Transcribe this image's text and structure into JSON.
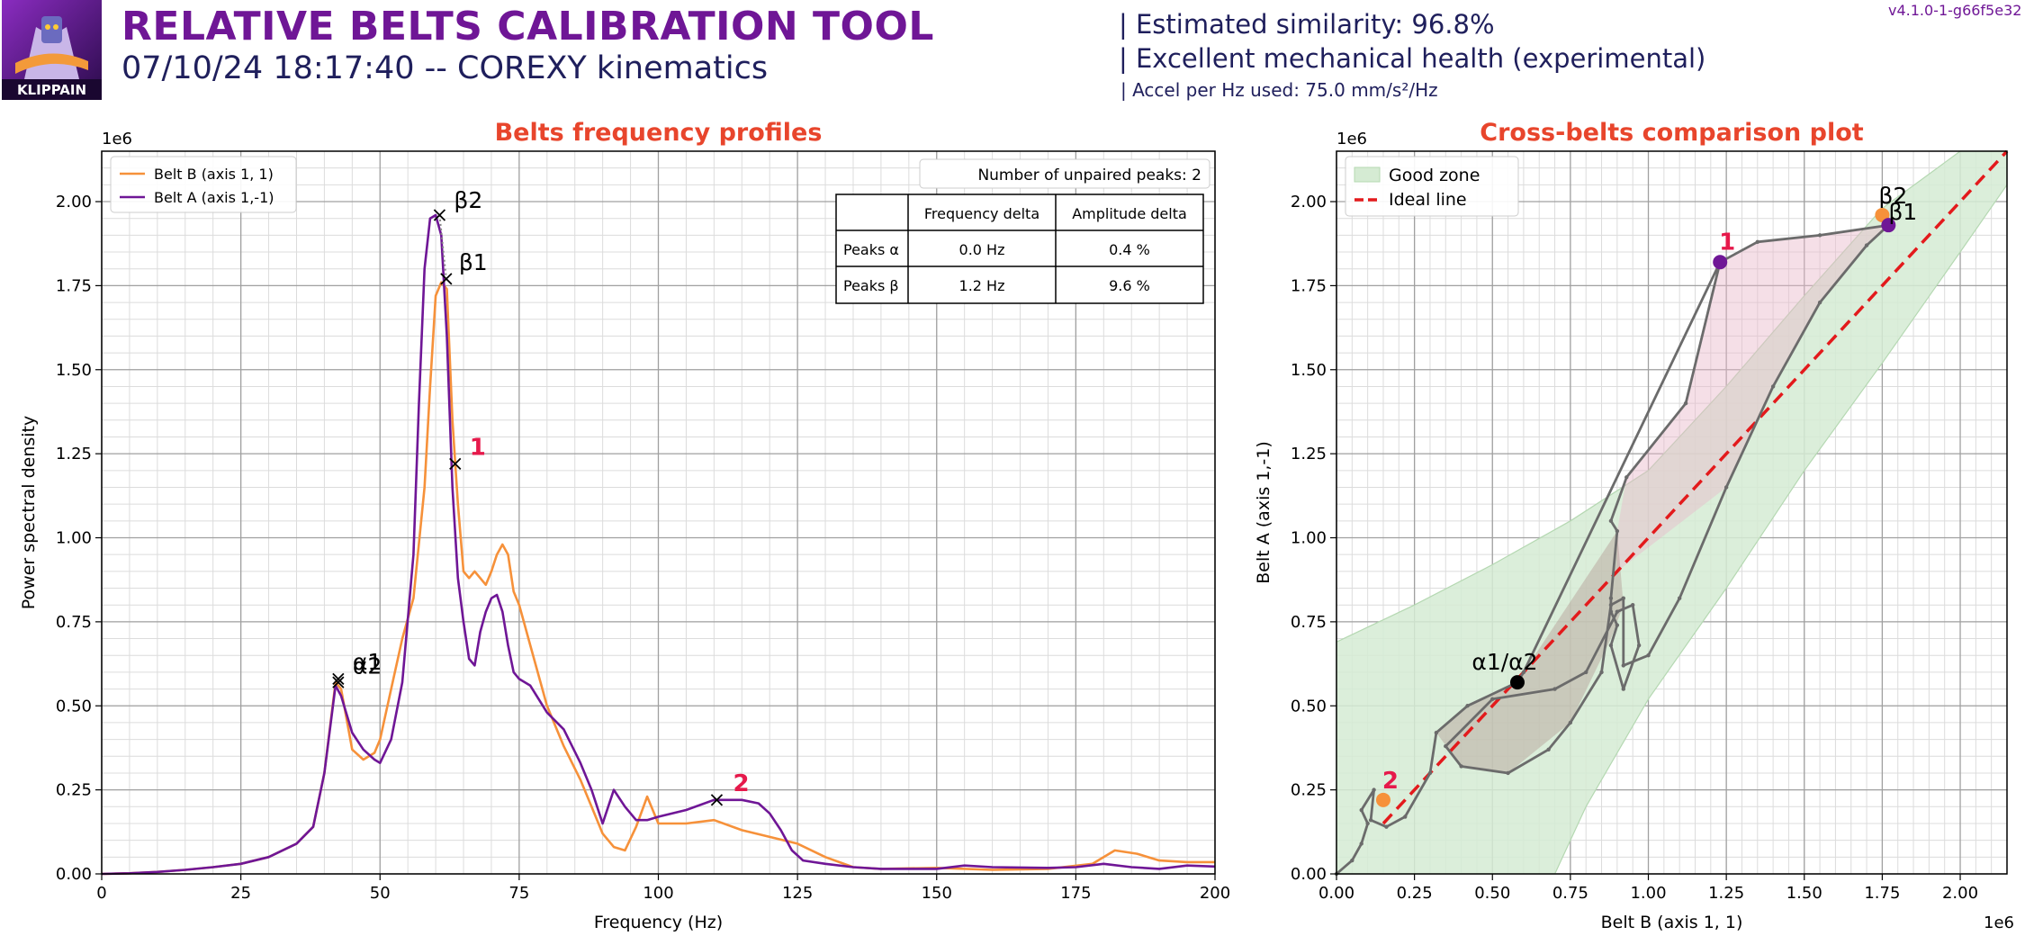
{
  "header": {
    "logo_text": "KLIPPAIN",
    "title": "RELATIVE BELTS CALIBRATION TOOL",
    "subtitle": "07/10/24 18:17:40 -- COREXY kinematics",
    "similarity": "| Estimated similarity: 96.8%",
    "health": "| Excellent mechanical health (experimental)",
    "accel": "| Accel per Hz used: 75.0 mm/s²/Hz",
    "version": "v4.1.0-1-g66f5e32"
  },
  "colors": {
    "belt_b": "#f6913a",
    "belt_a": "#6f1696",
    "title_red": "#e8452c",
    "ideal_line": "#e31a1c",
    "good_zone": "#d5ebd3",
    "path": "#6b6b6b",
    "label_red": "#e6194b"
  },
  "chart_data": [
    {
      "type": "line",
      "title": "Belts frequency profiles",
      "xlabel": "Frequency (Hz)",
      "ylabel": "Power spectral density",
      "y_offset_label": "1e6",
      "xlim": [
        0,
        200
      ],
      "ylim": [
        0,
        2.15
      ],
      "xticks": [
        0,
        25,
        50,
        75,
        100,
        125,
        150,
        175,
        200
      ],
      "yticks": [
        0,
        0.25,
        0.5,
        0.75,
        1.0,
        1.25,
        1.5,
        1.75,
        2.0
      ],
      "xtick_labels": [
        "0",
        "25",
        "50",
        "75",
        "100",
        "125",
        "150",
        "175",
        "200"
      ],
      "ytick_labels": [
        "0.00",
        "0.25",
        "0.50",
        "0.75",
        "1.00",
        "1.25",
        "1.50",
        "1.75",
        "2.00"
      ],
      "grid": true,
      "legend_position": "top-left",
      "series": [
        {
          "name": "Belt B (axis 1, 1)",
          "x": [
            0,
            5,
            10,
            15,
            20,
            25,
            30,
            35,
            38,
            40,
            42,
            43,
            45,
            47,
            49,
            50,
            52,
            54,
            56,
            58,
            59,
            60,
            61,
            62,
            63,
            64,
            65,
            66,
            67,
            68,
            69,
            70,
            71,
            72,
            73,
            74,
            75,
            77,
            80,
            83,
            86,
            88,
            90,
            92,
            94,
            96,
            98,
            100,
            105,
            110,
            115,
            120,
            125,
            130,
            135,
            140,
            150,
            160,
            170,
            178,
            182,
            186,
            190,
            195,
            200
          ],
          "values": [
            0,
            0.002,
            0.006,
            0.012,
            0.02,
            0.03,
            0.05,
            0.09,
            0.14,
            0.3,
            0.57,
            0.55,
            0.37,
            0.34,
            0.36,
            0.4,
            0.55,
            0.7,
            0.82,
            1.15,
            1.45,
            1.72,
            1.76,
            1.74,
            1.35,
            1.1,
            0.9,
            0.88,
            0.9,
            0.88,
            0.86,
            0.9,
            0.95,
            0.98,
            0.95,
            0.84,
            0.8,
            0.68,
            0.5,
            0.38,
            0.28,
            0.2,
            0.12,
            0.08,
            0.07,
            0.14,
            0.23,
            0.15,
            0.15,
            0.16,
            0.13,
            0.11,
            0.09,
            0.05,
            0.02,
            0.015,
            0.018,
            0.012,
            0.015,
            0.03,
            0.07,
            0.06,
            0.04,
            0.035,
            0.035
          ]
        },
        {
          "name": "Belt A (axis 1,-1)",
          "x": [
            0,
            5,
            10,
            15,
            20,
            25,
            30,
            35,
            38,
            40,
            42,
            43,
            45,
            47,
            49,
            50,
            52,
            54,
            56,
            57,
            58,
            59,
            60,
            61,
            62,
            63,
            64,
            65,
            66,
            67,
            68,
            69,
            70,
            71,
            72,
            73,
            74,
            75,
            77,
            80,
            83,
            86,
            88,
            90,
            92,
            94,
            96,
            98,
            100,
            105,
            110,
            115,
            118,
            120,
            122,
            124,
            126,
            130,
            135,
            140,
            150,
            155,
            160,
            170,
            175,
            180,
            185,
            190,
            195,
            200
          ],
          "values": [
            0,
            0.002,
            0.006,
            0.012,
            0.02,
            0.03,
            0.05,
            0.09,
            0.14,
            0.3,
            0.56,
            0.53,
            0.42,
            0.37,
            0.34,
            0.33,
            0.4,
            0.57,
            0.95,
            1.4,
            1.8,
            1.95,
            1.96,
            1.9,
            1.6,
            1.15,
            0.88,
            0.75,
            0.64,
            0.62,
            0.72,
            0.78,
            0.82,
            0.83,
            0.78,
            0.68,
            0.6,
            0.58,
            0.56,
            0.48,
            0.43,
            0.33,
            0.25,
            0.15,
            0.25,
            0.2,
            0.16,
            0.16,
            0.17,
            0.19,
            0.22,
            0.22,
            0.21,
            0.18,
            0.13,
            0.07,
            0.04,
            0.03,
            0.02,
            0.015,
            0.015,
            0.025,
            0.02,
            0.018,
            0.02,
            0.03,
            0.02,
            0.015,
            0.025,
            0.022
          ]
        }
      ],
      "peaks": [
        {
          "label": "α2",
          "x": 42.5,
          "y": 0.58,
          "color": "#000000"
        },
        {
          "label": "α1",
          "x": 42.5,
          "y": 0.57,
          "color": "#000000"
        },
        {
          "label": "β2",
          "x": 60.7,
          "y": 1.96,
          "color": "#000000"
        },
        {
          "label": "β1",
          "x": 61.9,
          "y": 1.77,
          "color": "#000000"
        },
        {
          "label": "1",
          "x": 63.5,
          "y": 1.22,
          "color": "#e6194b"
        },
        {
          "label": "2",
          "x": 110.5,
          "y": 0.22,
          "color": "#e6194b"
        }
      ],
      "unpaired_label": "Number of unpaired peaks: 2",
      "table": {
        "headers": [
          "",
          "Frequency delta",
          "Amplitude delta"
        ],
        "rows": [
          [
            "Peaks α",
            "0.0 Hz",
            "0.4 %"
          ],
          [
            "Peaks β",
            "1.2 Hz",
            "9.6 %"
          ]
        ]
      }
    },
    {
      "type": "scatter",
      "title": "Cross-belts comparison plot",
      "xlabel": "Belt B (axis 1, 1)",
      "ylabel": "Belt A (axis 1,-1)",
      "x_offset_label": "1e6",
      "y_offset_label": "1e6",
      "xlim": [
        0,
        2.15
      ],
      "ylim": [
        0,
        2.15
      ],
      "xticks": [
        0,
        0.25,
        0.5,
        0.75,
        1.0,
        1.25,
        1.5,
        1.75,
        2.0
      ],
      "yticks": [
        0,
        0.25,
        0.5,
        0.75,
        1.0,
        1.25,
        1.5,
        1.75,
        2.0
      ],
      "xtick_labels": [
        "0.00",
        "0.25",
        "0.50",
        "0.75",
        "1.00",
        "1.25",
        "1.50",
        "1.75",
        "2.00"
      ],
      "ytick_labels": [
        "0.00",
        "0.25",
        "0.50",
        "0.75",
        "1.00",
        "1.25",
        "1.50",
        "1.75",
        "2.00"
      ],
      "grid": true,
      "legend_position": "top-left",
      "legend": [
        {
          "label": "Good zone",
          "kind": "zone"
        },
        {
          "label": "Ideal line",
          "kind": "dashed"
        }
      ],
      "good_zone_upper": [
        [
          0,
          0.69
        ],
        [
          0.25,
          0.8
        ],
        [
          0.5,
          0.92
        ],
        [
          0.75,
          1.05
        ],
        [
          1.0,
          1.2
        ],
        [
          1.25,
          1.45
        ],
        [
          1.5,
          1.72
        ],
        [
          1.75,
          1.98
        ],
        [
          2.0,
          2.15
        ],
        [
          2.15,
          2.15
        ]
      ],
      "good_zone_lower": [
        [
          0,
          0
        ],
        [
          0.7,
          0
        ],
        [
          0.8,
          0.2
        ],
        [
          1.0,
          0.52
        ],
        [
          1.25,
          0.85
        ],
        [
          1.5,
          1.2
        ],
        [
          1.75,
          1.52
        ],
        [
          2.0,
          1.85
        ],
        [
          2.15,
          2.05
        ],
        [
          2.15,
          2.15
        ]
      ],
      "ideal_line": [
        [
          0.15,
          0.15
        ],
        [
          2.15,
          2.15
        ]
      ],
      "path": [
        [
          0,
          0
        ],
        [
          0.05,
          0.04
        ],
        [
          0.08,
          0.09
        ],
        [
          0.1,
          0.15
        ],
        [
          0.08,
          0.19
        ],
        [
          0.12,
          0.25
        ],
        [
          0.11,
          0.16
        ],
        [
          0.16,
          0.14
        ],
        [
          0.22,
          0.17
        ],
        [
          0.3,
          0.3
        ],
        [
          0.32,
          0.42
        ],
        [
          0.42,
          0.5
        ],
        [
          0.58,
          0.57
        ],
        [
          0.6,
          0.6
        ],
        [
          1.23,
          1.82
        ],
        [
          1.35,
          1.88
        ],
        [
          1.55,
          1.9
        ],
        [
          1.77,
          1.93
        ],
        [
          1.7,
          1.87
        ],
        [
          1.55,
          1.7
        ],
        [
          1.4,
          1.45
        ],
        [
          1.25,
          1.15
        ],
        [
          1.1,
          0.82
        ],
        [
          1.0,
          0.65
        ],
        [
          0.92,
          0.62
        ],
        [
          0.92,
          0.82
        ],
        [
          0.88,
          0.8
        ],
        [
          0.85,
          0.6
        ],
        [
          0.75,
          0.45
        ],
        [
          0.68,
          0.37
        ],
        [
          0.55,
          0.3
        ],
        [
          0.4,
          0.32
        ],
        [
          0.35,
          0.38
        ],
        [
          0.5,
          0.52
        ],
        [
          0.7,
          0.55
        ],
        [
          0.8,
          0.6
        ],
        [
          0.9,
          0.78
        ],
        [
          0.95,
          0.8
        ],
        [
          0.97,
          0.68
        ],
        [
          0.92,
          0.55
        ],
        [
          0.88,
          0.68
        ],
        [
          0.9,
          0.74
        ],
        [
          0.88,
          0.78
        ],
        [
          0.88,
          0.82
        ],
        [
          0.9,
          1.02
        ],
        [
          0.88,
          1.05
        ],
        [
          0.93,
          1.18
        ],
        [
          1.12,
          1.4
        ],
        [
          1.23,
          1.82
        ]
      ],
      "path_fill": [
        [
          1.23,
          1.82
        ],
        [
          1.35,
          1.88
        ],
        [
          1.55,
          1.9
        ],
        [
          1.77,
          1.93
        ],
        [
          1.7,
          1.87
        ],
        [
          1.55,
          1.7
        ],
        [
          1.4,
          1.45
        ],
        [
          1.25,
          1.15
        ],
        [
          0.9,
          0.9
        ],
        [
          0.9,
          1.02
        ],
        [
          0.93,
          1.18
        ],
        [
          1.12,
          1.4
        ]
      ],
      "path_fill2": [
        [
          0.58,
          0.57
        ],
        [
          0.6,
          0.6
        ],
        [
          0.9,
          1.02
        ],
        [
          0.92,
          0.8
        ],
        [
          0.88,
          0.7
        ],
        [
          0.75,
          0.45
        ],
        [
          0.55,
          0.3
        ],
        [
          0.4,
          0.32
        ],
        [
          0.32,
          0.42
        ],
        [
          0.42,
          0.5
        ]
      ],
      "points": [
        {
          "label": "α1/α2",
          "x": 0.58,
          "y": 0.57,
          "color": "#000000"
        },
        {
          "label": "β2",
          "x": 1.75,
          "y": 1.96,
          "color": "#f6913a"
        },
        {
          "label": "β1",
          "x": 1.77,
          "y": 1.93,
          "color": "#6f1696"
        },
        {
          "label": "1",
          "x": 1.23,
          "y": 1.82,
          "color": "#6f1696",
          "label_color": "#e6194b"
        },
        {
          "label": "2",
          "x": 0.15,
          "y": 0.22,
          "color": "#f6913a",
          "label_color": "#e6194b"
        }
      ]
    }
  ]
}
